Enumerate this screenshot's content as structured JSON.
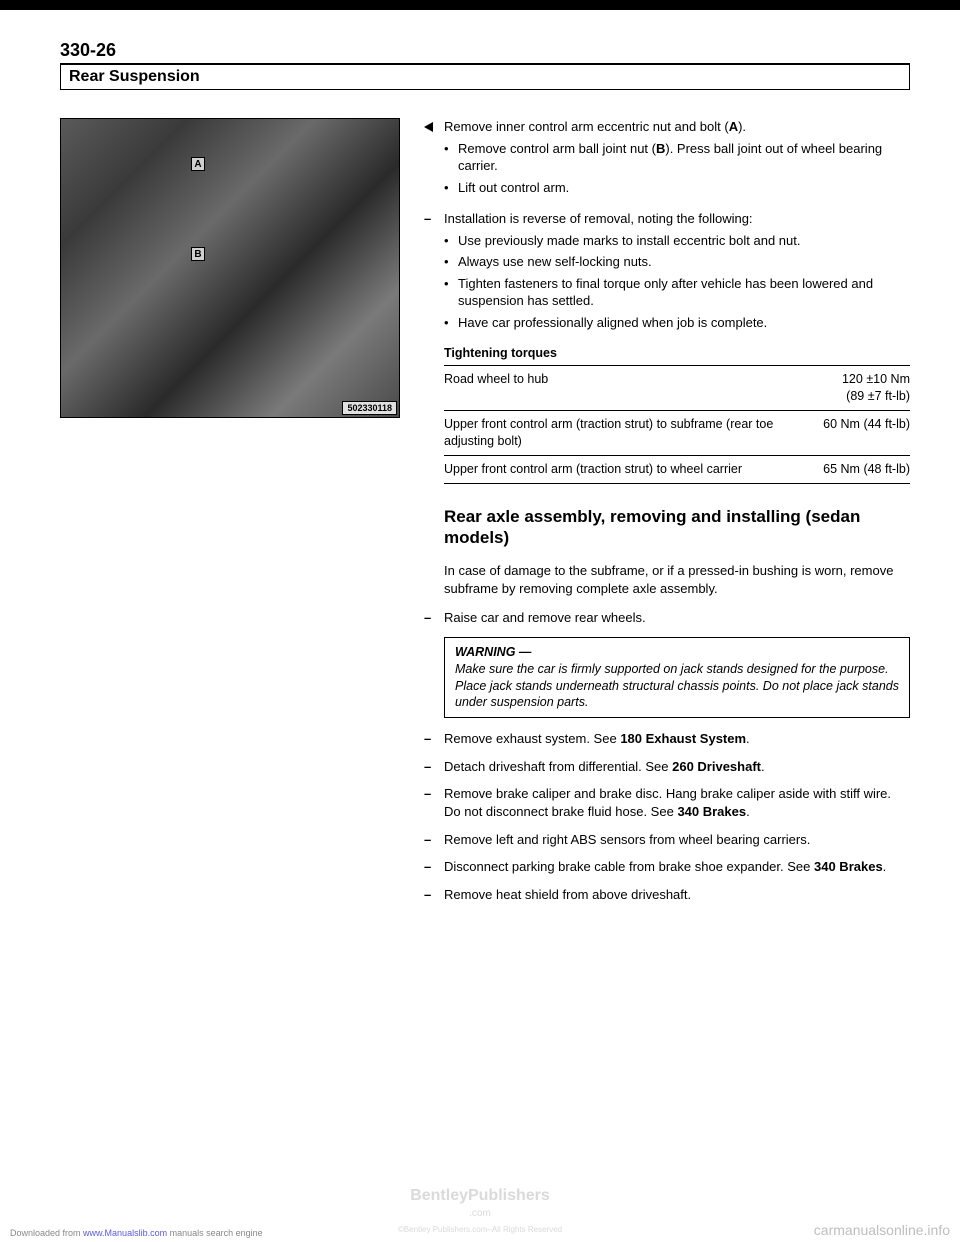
{
  "page_number": "330-26",
  "section_title": "Rear Suspension",
  "photo": {
    "label_a": "A",
    "label_b": "B",
    "id": "502330118"
  },
  "step1": {
    "lead": "Remove inner control arm eccentric nut and bolt (",
    "bold_ref_a": "A",
    "lead2": ").",
    "sub1a": "Remove control arm ball joint nut (",
    "bold_ref_b": "B",
    "sub1b": "). Press ball joint out of wheel bearing carrier.",
    "sub2": "Lift out control arm."
  },
  "step2": {
    "lead": "Installation is reverse of removal, noting the following:",
    "sub1": "Use previously made marks to install eccentric bolt and nut.",
    "sub2": "Always use new self-locking nuts.",
    "sub3": "Tighten fasteners to final torque only after vehicle has been lowered and suspension has settled.",
    "sub4": "Have car professionally aligned when job is complete."
  },
  "torque": {
    "heading": "Tightening torques",
    "rows": [
      {
        "desc": "Road wheel to hub",
        "val": "120 ±10 Nm\n(89 ±7 ft-lb)"
      },
      {
        "desc": "Upper front control arm (traction strut) to subframe (rear toe adjusting bolt)",
        "val": "60 Nm (44 ft-lb)"
      },
      {
        "desc": "Upper front control arm (traction strut) to wheel carrier",
        "val": "65 Nm (48 ft-lb)"
      }
    ]
  },
  "subsection": "Rear axle assembly, removing and installing (sedan models)",
  "intro_para": "In case of damage to the subframe, or if a pressed-in bushing is worn, remove subframe by removing complete axle assembly.",
  "raise_step": "Raise car and remove rear wheels.",
  "warning": {
    "title": "WARNING —",
    "body": "Make sure the car is firmly supported on jack stands designed for the purpose. Place jack stands underneath structural chassis points. Do not place jack stands under suspension parts."
  },
  "steps_after": [
    {
      "pre": "Remove exhaust system. See ",
      "bold": "180 Exhaust System",
      "post": "."
    },
    {
      "pre": "Detach driveshaft from differential. See ",
      "bold": "260 Driveshaft",
      "post": "."
    },
    {
      "pre": "Remove brake caliper and brake disc. Hang brake caliper aside with stiff wire. Do not disconnect brake fluid hose. See ",
      "bold": "340 Brakes",
      "post": "."
    },
    {
      "pre": "Remove left and right ABS sensors from wheel bearing carriers.",
      "bold": "",
      "post": ""
    },
    {
      "pre": "Disconnect parking brake cable from brake shoe expander. See ",
      "bold": "340 Brakes",
      "post": "."
    },
    {
      "pre": "Remove heat shield from above driveshaft.",
      "bold": "",
      "post": ""
    }
  ],
  "footer": {
    "left_pre": "Downloaded from ",
    "left_link": "www.Manualslib.com",
    "left_post": " manuals search engine",
    "center_main": "BentleyPublishers",
    "center_sub1": ".com",
    "center_sub2": "©Bentley Publishers.com–All Rights Reserved",
    "right": "carmanualsonline.info"
  }
}
